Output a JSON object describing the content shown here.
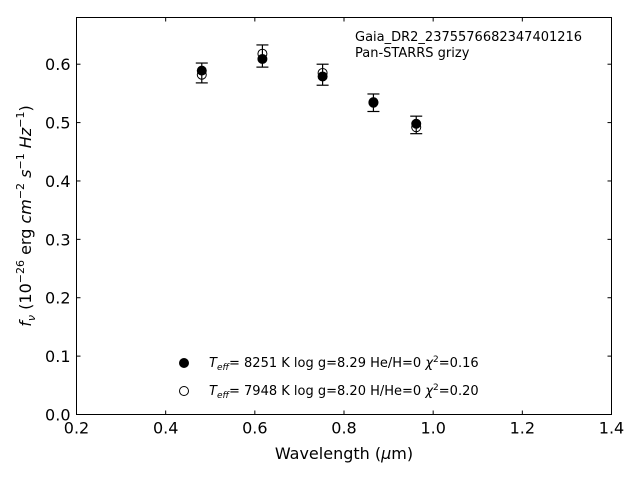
{
  "chart_data": {
    "type": "scatter",
    "annotation_lines": [
      "Gaia_DR2_2375576682347401216",
      "Pan-STARRS grizy"
    ],
    "xlabel": "Wavelength (μm)",
    "ylabel": "fν (10⁻²⁶ erg cm⁻² s⁻¹ Hz⁻¹)",
    "xlim": [
      0.2,
      1.4
    ],
    "ylim": [
      0.0,
      0.68
    ],
    "xticks": [
      "0.2",
      "0.4",
      "0.6",
      "0.8",
      "1.0",
      "1.2",
      "1.4"
    ],
    "yticks": [
      "0.0",
      "0.1",
      "0.2",
      "0.3",
      "0.4",
      "0.5",
      "0.6"
    ],
    "observed": {
      "x": [
        0.481,
        0.617,
        0.752,
        0.866,
        0.962
      ],
      "y": [
        0.585,
        0.614,
        0.582,
        0.534,
        0.496
      ],
      "yerr": [
        0.017,
        0.019,
        0.018,
        0.015,
        0.015
      ]
    },
    "series": [
      {
        "name": "Teff= 8251 K log g=8.29 He/H=0 χ²=0.16",
        "marker": "filled-circle",
        "x": [
          0.481,
          0.617,
          0.752,
          0.866,
          0.962
        ],
        "y": [
          0.589,
          0.609,
          0.579,
          0.535,
          0.498
        ]
      },
      {
        "name": "Teff= 7948 K log g=8.20 H/He=0 χ²=0.20",
        "marker": "open-circle",
        "x": [
          0.481,
          0.617,
          0.752,
          0.866,
          0.962
        ],
        "y": [
          0.582,
          0.618,
          0.585,
          0.534,
          0.492
        ]
      }
    ],
    "legend": {
      "placement": "lower-center",
      "entries": [
        {
          "teff": "8251 K",
          "logg": "log g=8.29",
          "comp": "He/H=0",
          "chi": "=0.16",
          "marker": "filled-circle"
        },
        {
          "teff": "7948 K",
          "logg": "log g=8.20",
          "comp": "H/He=0",
          "chi": "=0.20",
          "marker": "open-circle"
        }
      ]
    },
    "grid": false
  }
}
